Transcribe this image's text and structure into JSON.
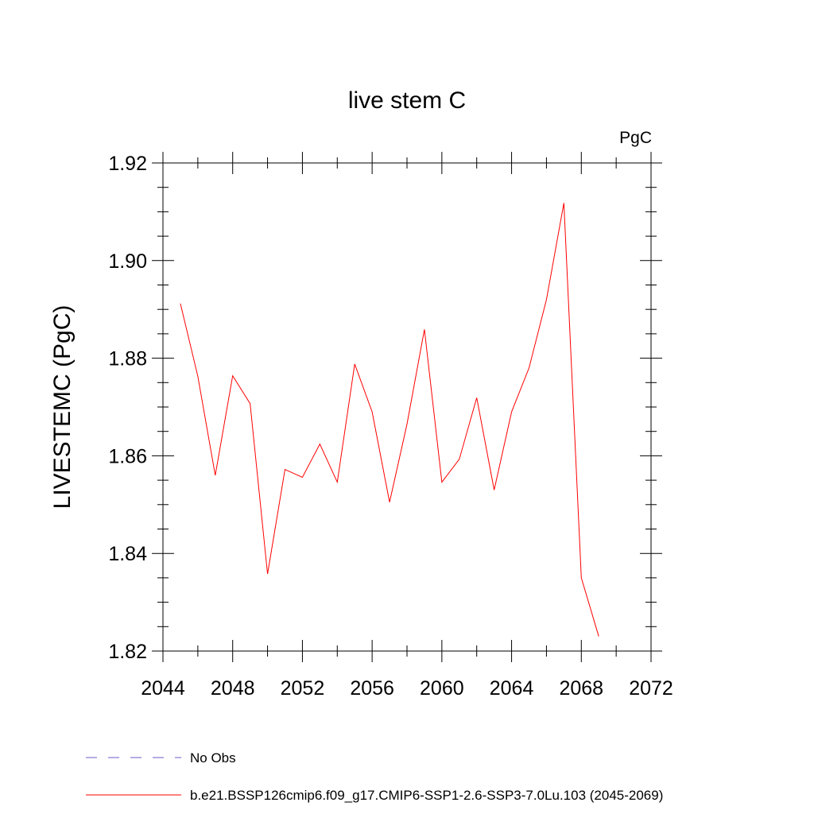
{
  "chart_data": {
    "type": "line",
    "title": "live stem C",
    "units_label": "PgC",
    "xlabel": "",
    "ylabel": "LIVESTEMC  (PgC)",
    "xlim": [
      2044,
      2072
    ],
    "ylim": [
      1.82,
      1.92
    ],
    "xticks": [
      "2044",
      "2048",
      "2052",
      "2056",
      "2060",
      "2064",
      "2068",
      "2072"
    ],
    "yticks": [
      "1.82",
      "1.84",
      "1.86",
      "1.88",
      "1.90",
      "1.92"
    ],
    "grid": false,
    "legend_position": "bottom",
    "series": [
      {
        "name": "b.e21.BSSP126cmip6.f09_g17.CMIP6-SSP1-2.6-SSP3-7.0Lu.103 (2045-2069)",
        "color": "#ff0000",
        "style": "solid",
        "x": [
          2045,
          2046,
          2047,
          2048,
          2049,
          2050,
          2051,
          2052,
          2053,
          2054,
          2055,
          2056,
          2057,
          2058,
          2059,
          2060,
          2061,
          2062,
          2063,
          2064,
          2065,
          2066,
          2067,
          2068,
          2069
        ],
        "y": [
          1.8912,
          1.8763,
          1.856,
          1.8764,
          1.8707,
          1.8358,
          1.8572,
          1.8556,
          1.8624,
          1.8546,
          1.8788,
          1.869,
          1.8505,
          1.8665,
          1.8859,
          1.8546,
          1.8593,
          1.8719,
          1.853,
          1.869,
          1.878,
          1.892,
          1.9118,
          1.835,
          1.823
        ]
      }
    ],
    "legend": [
      {
        "label": "No Obs",
        "color": "#6a5acd",
        "style": "dashed"
      },
      {
        "label": "b.e21.BSSP126cmip6.f09_g17.CMIP6-SSP1-2.6-SSP3-7.0Lu.103 (2045-2069)",
        "color": "#ff0000",
        "style": "solid"
      }
    ]
  }
}
